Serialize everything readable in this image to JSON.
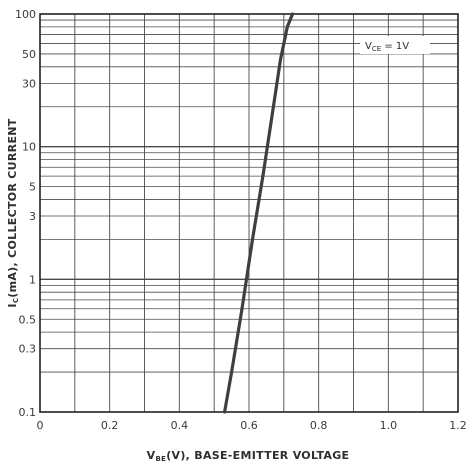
{
  "chart_data": {
    "type": "line",
    "title": "",
    "xlabel": {
      "main": "V",
      "sub": "BE",
      "rest": "(V), BASE-EMITTER VOLTAGE"
    },
    "ylabel": {
      "main": "I",
      "sub": "C",
      "rest": "(mA), COLLECTOR CURRENT"
    },
    "x_scale": "linear",
    "y_scale": "log",
    "xlim": [
      0,
      1.2
    ],
    "ylim": [
      0.1,
      100
    ],
    "x_ticks": [
      0,
      0.2,
      0.4,
      0.6,
      0.8,
      1.0,
      1.2
    ],
    "x_tick_labels": [
      "0",
      "0.2",
      "0.4",
      "0.6",
      "0.8",
      "1.0",
      "1.2"
    ],
    "y_ticks": [
      0.1,
      0.3,
      0.5,
      1,
      3,
      5,
      10,
      30,
      50,
      100
    ],
    "y_tick_labels": [
      "0.1",
      "0.3",
      "0.5",
      "1",
      "3",
      "5",
      "10",
      "30",
      "50",
      "100"
    ],
    "grid": true,
    "annotation": {
      "main": "V",
      "sub": "CE",
      "rest": " = 1V"
    },
    "series": [
      {
        "x": [
          0.53,
          0.55,
          0.58,
          0.61,
          0.64,
          0.67,
          0.69,
          0.71,
          0.725
        ],
        "y": [
          0.1,
          0.2,
          0.6,
          2,
          6,
          20,
          45,
          80,
          100
        ]
      }
    ],
    "colors": {
      "curve": "#3f3f3f",
      "grid": "#4a4a4a",
      "frame": "#222222"
    }
  }
}
